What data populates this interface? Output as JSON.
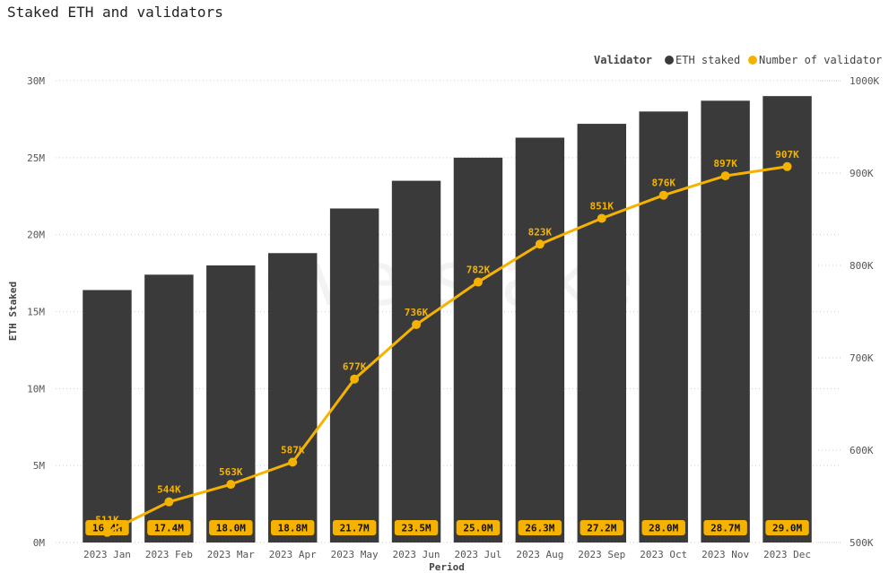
{
  "colors": {
    "bar": "#3a3a3a",
    "line": "#f5b300",
    "label_bg": "#f5b300",
    "grid": "#cccccc"
  },
  "watermark": "everstake",
  "chart_data": {
    "type": "bar",
    "title": "Staked ETH and validators",
    "xlabel": "Period",
    "ylabel": "ETH Staked",
    "legend": {
      "title": "Validator",
      "placement": "top-right",
      "entries": [
        "ETH staked",
        "Number of validator"
      ]
    },
    "categories": [
      "2023 Jan",
      "2023 Feb",
      "2023 Mar",
      "2023 Apr",
      "2023 May",
      "2023 Jun",
      "2023 Jul",
      "2023 Aug",
      "2023 Sep",
      "2023 Oct",
      "2023 Nov",
      "2023 Dec"
    ],
    "series": [
      {
        "name": "ETH staked",
        "type": "bar",
        "axis": "left",
        "values": [
          16.4,
          17.4,
          18.0,
          18.8,
          21.7,
          23.5,
          25.0,
          26.3,
          27.2,
          28.0,
          28.7,
          29.0
        ],
        "labels": [
          "16.4M",
          "17.4M",
          "18.0M",
          "18.8M",
          "21.7M",
          "23.5M",
          "25.0M",
          "26.3M",
          "27.2M",
          "28.0M",
          "28.7M",
          "29.0M"
        ]
      },
      {
        "name": "Number of validator",
        "type": "line",
        "axis": "right",
        "values": [
          511,
          544,
          563,
          587,
          677,
          736,
          782,
          823,
          851,
          876,
          897,
          907
        ],
        "labels": [
          "511K",
          "544K",
          "563K",
          "587K",
          "677K",
          "736K",
          "782K",
          "823K",
          "851K",
          "876K",
          "897K",
          "907K"
        ]
      }
    ],
    "y_left": {
      "range": [
        0,
        30
      ],
      "ticks": [
        0,
        5,
        10,
        15,
        20,
        25,
        30
      ],
      "tick_labels": [
        "0M",
        "5M",
        "10M",
        "15M",
        "20M",
        "25M",
        "30M"
      ]
    },
    "y_right": {
      "range": [
        500,
        1000
      ],
      "ticks": [
        500,
        600,
        700,
        800,
        900,
        1000
      ],
      "tick_labels": [
        "500K",
        "600K",
        "700K",
        "800K",
        "900K",
        "1000K"
      ]
    },
    "grid": true
  }
}
